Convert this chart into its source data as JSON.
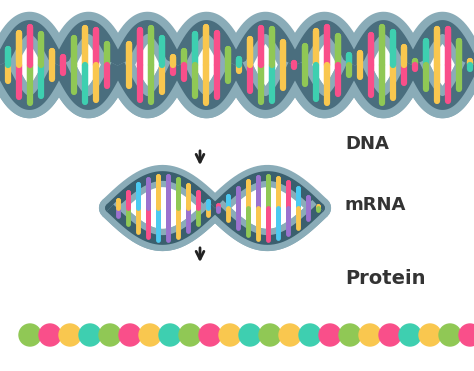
{
  "bg_color": "#ffffff",
  "dna_strand_color_outer": "#8aacb8",
  "dna_strand_color_inner": "#4a6e7e",
  "dna_bar_colors": [
    "#f9c74f",
    "#f94f8a",
    "#90c855",
    "#3ecfb0",
    "#f9c74f",
    "#f94f8a",
    "#90c855"
  ],
  "mrna_strand_color_outer": "#8aacb8",
  "mrna_strand_color_inner": "#3a5f6e",
  "mrna_bar_colors": [
    "#9b72cf",
    "#90c855",
    "#f9c74f",
    "#f94f8a",
    "#4cc9f0",
    "#9b72cf",
    "#f9c74f"
  ],
  "protein_colors": [
    "#90c855",
    "#f94f8a",
    "#f9c74f",
    "#3ecfb0",
    "#90c855",
    "#f94f8a",
    "#f9c74f",
    "#3ecfb0",
    "#90c855",
    "#f94f8a",
    "#f9c74f",
    "#3ecfb0",
    "#90c855",
    "#f9c74f",
    "#3ecfb0",
    "#f94f8a",
    "#90c855",
    "#f9c74f",
    "#f94f8a",
    "#3ecfb0",
    "#f9c74f",
    "#90c855",
    "#f94f8a",
    "#3ecfb0",
    "#f9c74f"
  ],
  "arrow_color": "#222222",
  "label_dna": "DNA",
  "label_mrna": "mRNA",
  "label_protein": "Protein",
  "label_color": "#333333",
  "dna_fontsize": 13,
  "mrna_fontsize": 13,
  "protein_fontsize": 14
}
